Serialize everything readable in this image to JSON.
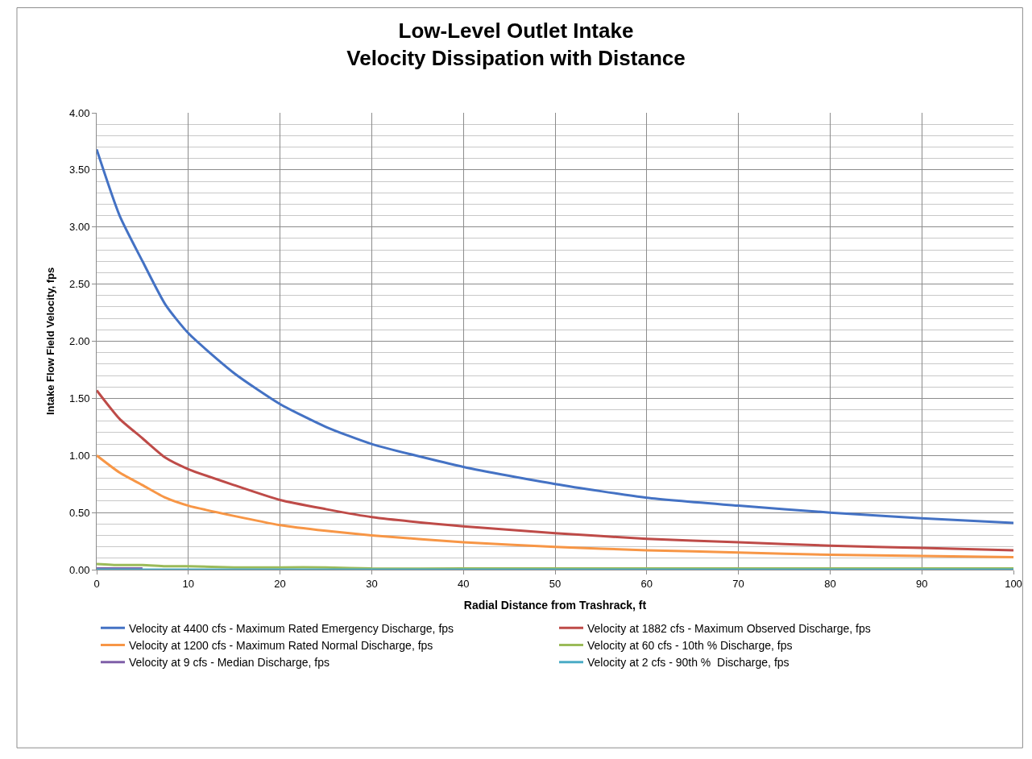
{
  "chart_data": {
    "type": "line",
    "title": "Low-Level Outlet Intake\nVelocity Dissipation with Distance",
    "xlabel": "Radial Distance from Trashrack, ft",
    "ylabel": "Intake Flow Field Velocity, fps",
    "xlim": [
      0,
      100
    ],
    "xticks": [
      0,
      10,
      20,
      30,
      40,
      50,
      60,
      70,
      80,
      90,
      100
    ],
    "ylim": [
      0,
      4
    ],
    "yticks": [
      {
        "value": 0,
        "label": "0.00"
      },
      {
        "value": 0.5,
        "label": "0.50"
      },
      {
        "value": 1,
        "label": "1.00"
      },
      {
        "value": 1.5,
        "label": "1.50"
      },
      {
        "value": 2,
        "label": "2.00"
      },
      {
        "value": 2.5,
        "label": "2.50"
      },
      {
        "value": 3,
        "label": "3.00"
      },
      {
        "value": 3.5,
        "label": "3.50"
      },
      {
        "value": 4,
        "label": "4.00"
      }
    ],
    "x": [
      0,
      2.5,
      5,
      7.5,
      10,
      15,
      20,
      25,
      30,
      40,
      50,
      60,
      70,
      80,
      90,
      100
    ],
    "grid": true,
    "legend": "bottom",
    "marker": "none",
    "line_style": "solid",
    "series": [
      {
        "name": "Velocity at 4400 cfs - Maximum Rated Emergency Discharge, fps",
        "color": "#4472c4",
        "values": [
          3.68,
          3.1,
          2.7,
          2.32,
          2.07,
          1.72,
          1.45,
          1.25,
          1.1,
          0.9,
          0.75,
          0.63,
          0.56,
          0.5,
          0.45,
          0.41
        ]
      },
      {
        "name": "Velocity at 1882 cfs - Maximum Observed Discharge, fps",
        "color": "#be4b48",
        "values": [
          1.57,
          1.32,
          1.15,
          0.98,
          0.88,
          0.74,
          0.61,
          0.53,
          0.46,
          0.38,
          0.32,
          0.27,
          0.24,
          0.21,
          0.19,
          0.17
        ]
      },
      {
        "name": "Velocity at 1200 cfs - Maximum Rated Normal Discharge, fps",
        "color": "#f79646",
        "values": [
          1.0,
          0.85,
          0.74,
          0.63,
          0.56,
          0.47,
          0.39,
          0.34,
          0.3,
          0.24,
          0.2,
          0.17,
          0.15,
          0.13,
          0.12,
          0.11
        ]
      },
      {
        "name": "Velocity at 60 cfs - 10th % Discharge, fps",
        "color": "#9bbb59",
        "values": [
          0.05,
          0.04,
          0.04,
          0.03,
          0.03,
          0.02,
          0.02,
          0.02,
          0.01,
          0.01,
          0.01,
          0.01,
          0.01,
          0.01,
          0.01,
          0.01
        ]
      },
      {
        "name": "Velocity at 9 cfs - Median Discharge, fps",
        "color": "#7f5fa8",
        "values": [
          0.01,
          0.01,
          0.01,
          null,
          null,
          null,
          null,
          null,
          null,
          null,
          null,
          null,
          null,
          null,
          null,
          null
        ]
      },
      {
        "name": "Velocity at 2 cfs - 90th %  Discharge, fps",
        "color": "#4bacc6",
        "values": [
          0.0,
          0.0,
          0.0,
          0.0,
          0.0,
          0.0,
          0.0,
          0.0,
          0.0,
          0.0,
          0.0,
          0.0,
          0.0,
          0.0,
          0.0,
          0.0
        ]
      }
    ]
  }
}
